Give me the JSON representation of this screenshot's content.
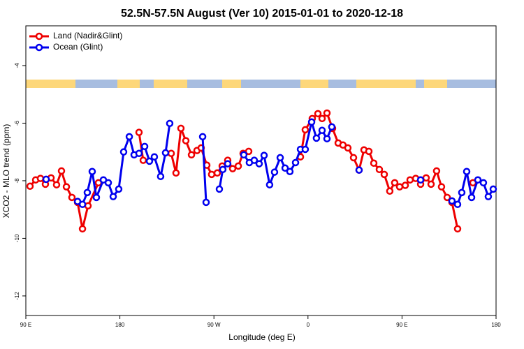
{
  "chart_data": {
    "type": "line",
    "title": "52.5N-57.5N August (Ver 10)   2015-01-01 to 2020-12-18",
    "xlabel": "Longitude (deg E)",
    "ylabel": "XCO2 - MLO trend (ppm)",
    "xlim": [
      90,
      540
    ],
    "xticks": [
      {
        "value": 90,
        "label": "90 E"
      },
      180,
      {
        "value": 270,
        "label": "90 W"
      },
      {
        "value": 360,
        "label": "0"
      },
      {
        "value": 450,
        "label": "90 E"
      },
      {
        "value": 540,
        "label": "180"
      }
    ],
    "ylim": [
      -12.68,
      -2.62
    ],
    "yticks": [
      -12,
      -10,
      -8,
      -6,
      -4
    ],
    "legend": "top-left",
    "series": [
      {
        "name": "Land (Nadir&Glint)",
        "color": "#ee0000",
        "x": [
          94.0,
          99.4,
          104.0,
          108.7,
          114.1,
          119.4,
          124.1,
          128.8,
          134.1,
          139.5,
          144.2,
          149.5,
          159.5,
          null,
          198.3,
          202.3,
          null,
          229.1,
          233.7,
          238.4,
          243.1,
          248.5,
          253.8,
          257.8,
          263.2,
          267.8,
          273.2,
          277.9,
          283.2,
          287.9,
          293.3,
          297.9,
          303.3,
          null,
          352.8,
          357.4,
          364.1,
          369.5,
          373.5,
          378.2,
          383.5,
          388.9,
          393.5,
          398.2,
          403.6,
          408.9,
          413.6,
          418.3,
          423.0,
          428.3,
          433.0,
          438.3,
          443.0,
          447.7,
          453.1,
          457.7,
          463.1,
          467.8,
          473.1,
          477.8,
          483.1,
          487.8,
          493.2,
          497.8,
          503.2,
          null,
          517.9
        ],
        "values": [
          -8.19,
          -7.97,
          -7.92,
          -8.12,
          -7.9,
          -8.14,
          -7.66,
          -8.21,
          -8.58,
          -8.75,
          -9.67,
          -8.87,
          -8.07,
          null,
          -6.32,
          -7.29,
          null,
          -7.05,
          -7.73,
          -6.18,
          -6.61,
          -7.1,
          -6.95,
          -6.86,
          -7.46,
          -7.78,
          -7.73,
          -7.49,
          -7.29,
          -7.58,
          -7.49,
          -7.05,
          -6.98,
          null,
          -7.17,
          -6.23,
          -5.84,
          -5.67,
          -5.84,
          -5.65,
          -6.18,
          -6.69,
          -6.76,
          -6.86,
          -7.2,
          -7.63,
          -6.93,
          -6.98,
          -7.39,
          -7.61,
          -7.78,
          -8.36,
          -8.07,
          -8.21,
          -8.16,
          -7.97,
          -7.92,
          -8.12,
          -7.9,
          -8.12,
          -7.66,
          -8.21,
          -8.58,
          -8.75,
          -9.67,
          null,
          -8.07
        ]
      },
      {
        "name": "Ocean (Glint)",
        "color": "#0000ee",
        "x": [
          109.4,
          null,
          139.5,
          144.2,
          148.8,
          153.5,
          157.5,
          164.2,
          168.9,
          173.6,
          178.9,
          183.6,
          189.0,
          193.6,
          198.3,
          203.7,
          208.3,
          213.0,
          219.0,
          223.7,
          227.7,
          null,
          259.2,
          262.5,
          null,
          275.2,
          278.5,
          283.2,
          null,
          298.6,
          303.9,
          308.6,
          313.3,
          318.0,
          323.3,
          328.0,
          333.4,
          338.1,
          342.7,
          348.1,
          352.8,
          357.4,
          363.5,
          368.1,
          373.5,
          378.2,
          382.8,
          null,
          408.9,
          null,
          467.8,
          null,
          497.8,
          503.2,
          507.2,
          511.9,
          516.6,
          522.6,
          527.9,
          532.6,
          537.3
        ],
        "values": [
          -7.95,
          null,
          -8.72,
          -8.82,
          -8.41,
          -7.68,
          -8.58,
          -7.97,
          -8.07,
          -8.55,
          -8.29,
          -7.0,
          -6.47,
          -7.1,
          -7.05,
          -6.81,
          -7.32,
          -7.17,
          -7.85,
          -7.03,
          -6.01,
          null,
          -6.47,
          -8.75,
          null,
          -8.29,
          -7.61,
          -7.41,
          null,
          -7.1,
          -7.37,
          -7.29,
          -7.41,
          -7.12,
          -8.14,
          -7.7,
          -7.2,
          -7.56,
          -7.68,
          -7.37,
          -6.91,
          -6.91,
          -5.96,
          -6.52,
          -6.25,
          -6.54,
          -6.13,
          null,
          -7.63,
          null,
          -7.97,
          null,
          -8.7,
          -8.82,
          -8.41,
          -7.68,
          -8.58,
          -7.97,
          -8.07,
          -8.55,
          -8.29
        ]
      }
    ]
  }
}
